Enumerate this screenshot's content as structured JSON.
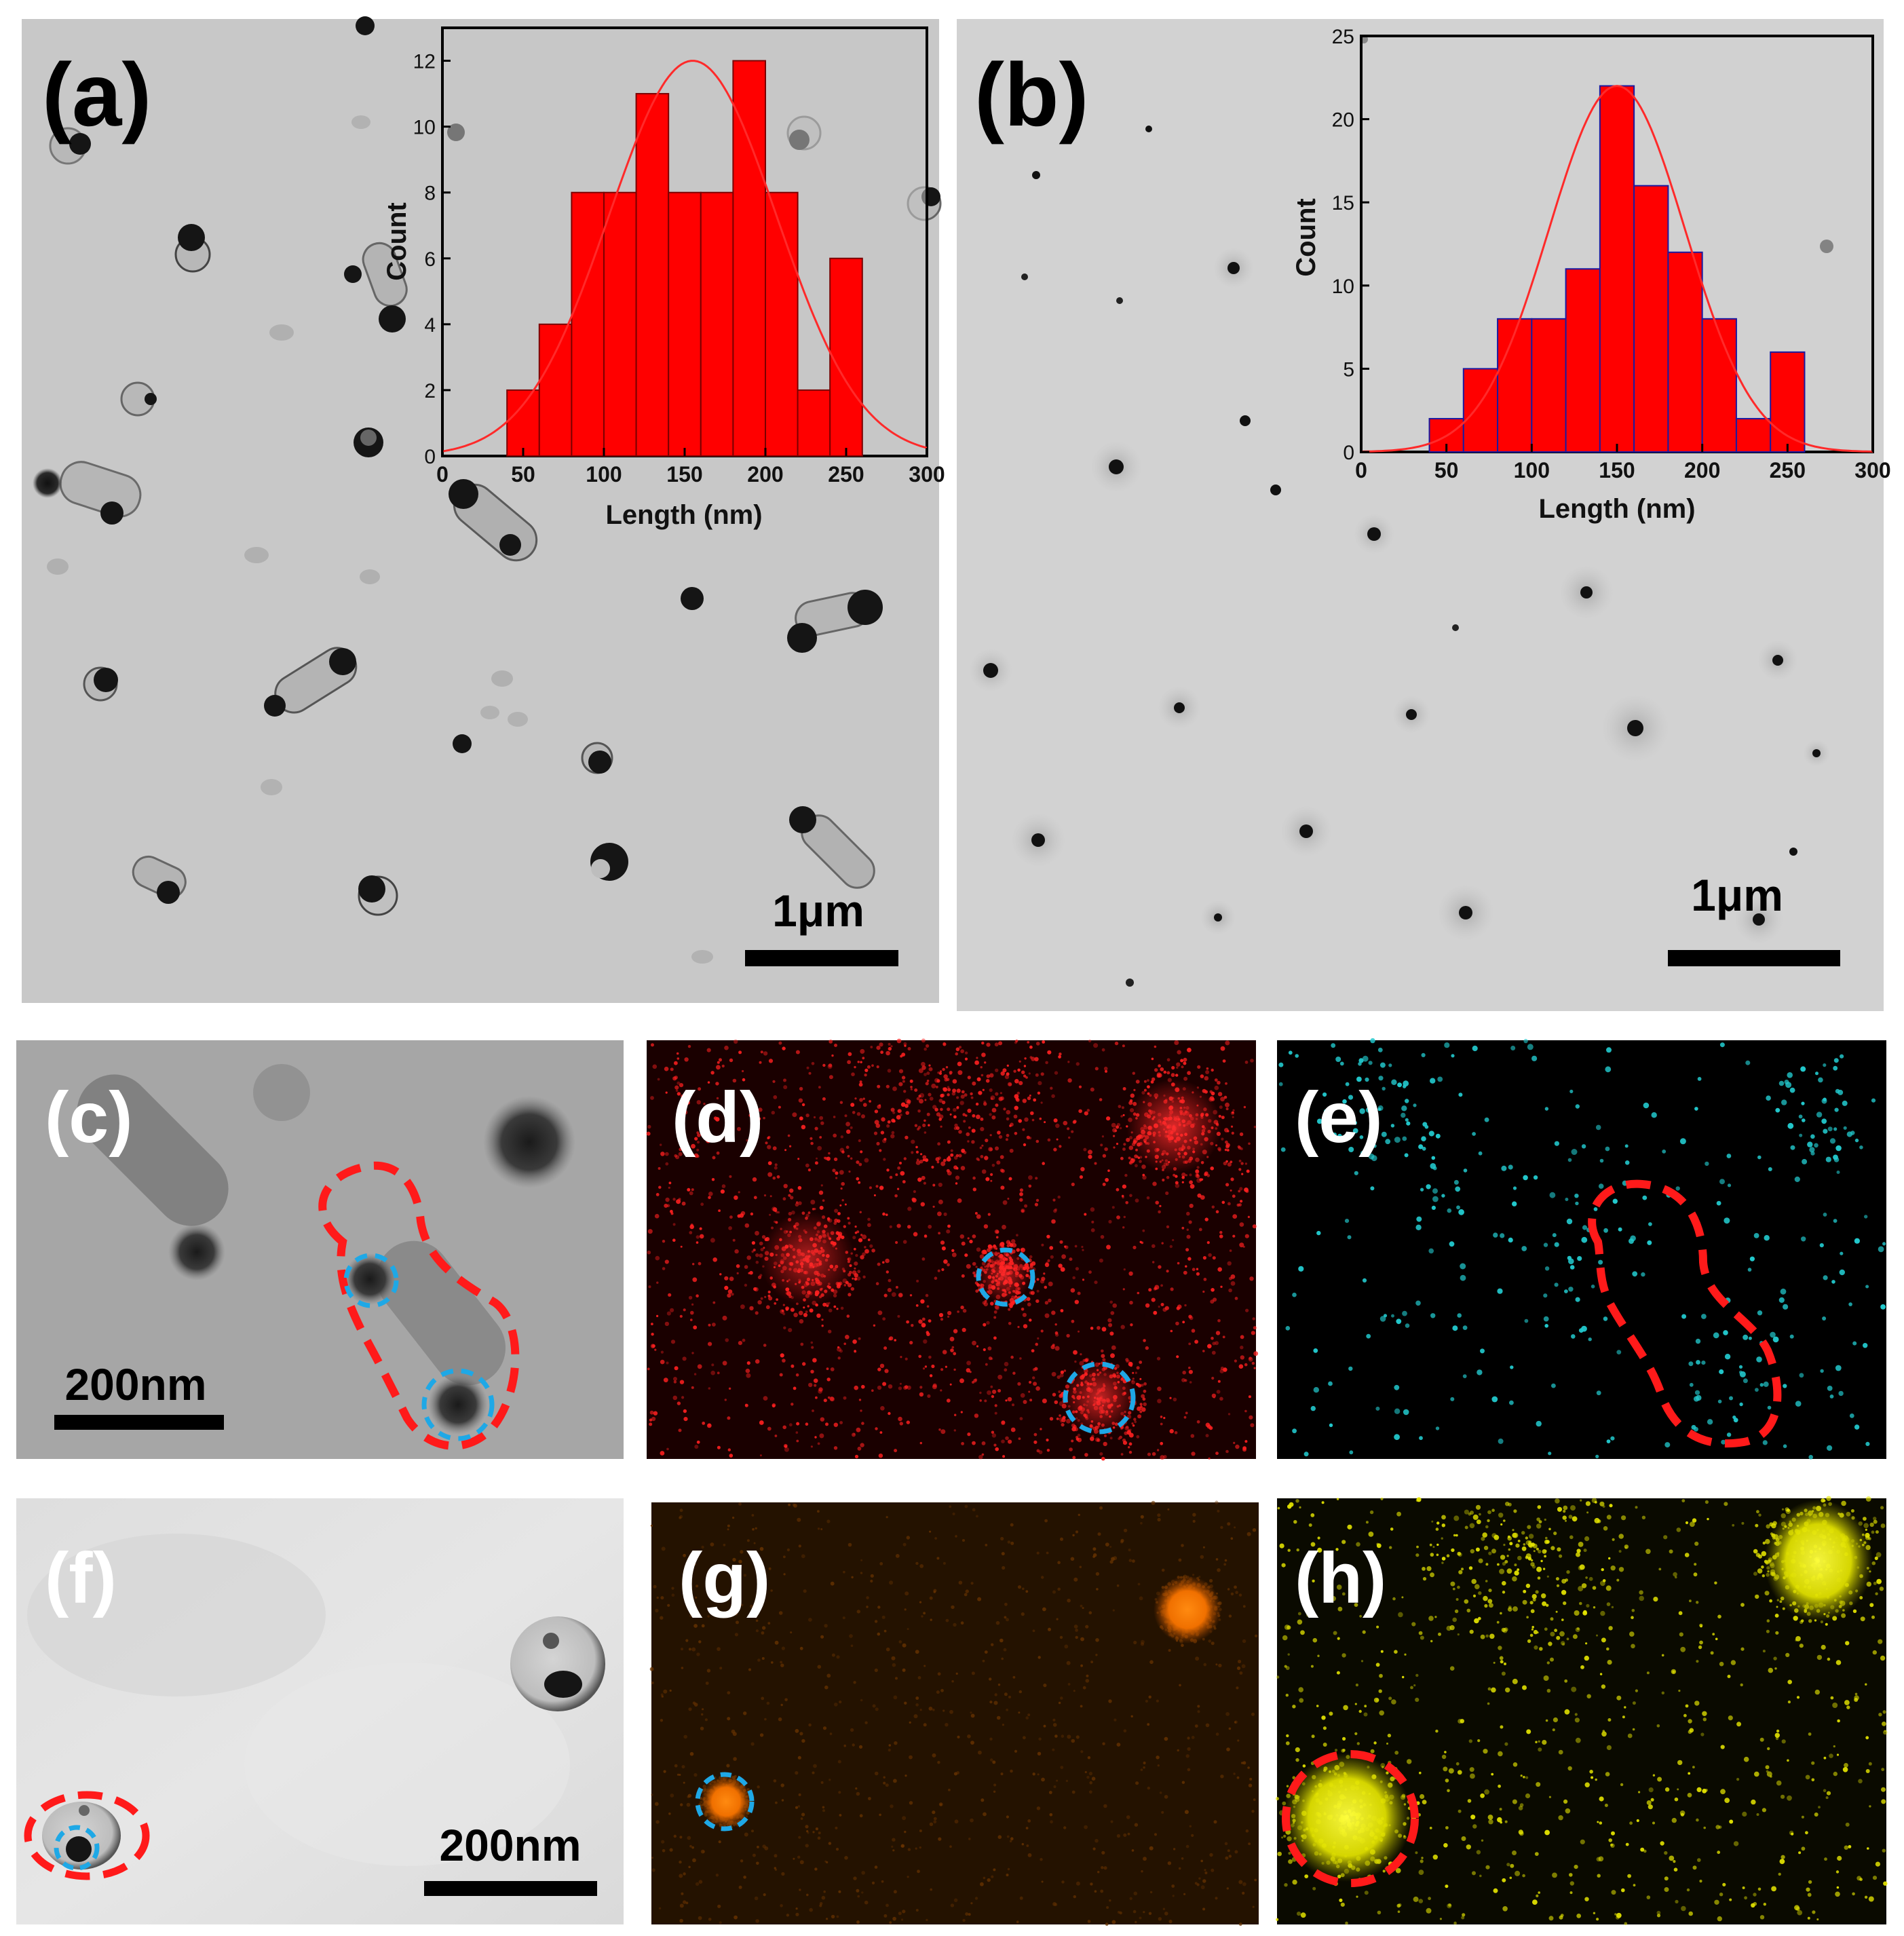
{
  "panels": {
    "a": {
      "label": "(a)",
      "scale_bar": "1μm"
    },
    "b": {
      "label": "(b)",
      "scale_bar": "1μm"
    },
    "c": {
      "label": "(c)",
      "scale_bar": "200nm"
    },
    "d": {
      "label": "(d)"
    },
    "e": {
      "label": "(e)"
    },
    "f": {
      "label": "(f)",
      "scale_bar": "200nm"
    },
    "g": {
      "label": "(g)"
    },
    "h": {
      "label": "(h)"
    }
  },
  "colors": {
    "bar_fill": "#ff0000",
    "bar_edge_a": "#7a0000",
    "bar_edge_b": "#1a1aa0",
    "fit_line": "#ff2a2a",
    "outline_red": "#ff1a1a",
    "outline_blue": "#1ea8e6",
    "map_red": "#ff2020",
    "map_cyan": "#22c8cc",
    "map_orange": "#ff7a00",
    "map_yellow": "#e6e600"
  },
  "chart_data": [
    {
      "type": "bar",
      "panel": "a",
      "xlabel": "Length (nm)",
      "ylabel": "Count",
      "bin_edges": [
        40,
        60,
        80,
        100,
        120,
        140,
        160,
        180,
        200,
        220,
        240,
        260
      ],
      "values": [
        2,
        4,
        8,
        8,
        11,
        8,
        8,
        12,
        8,
        2,
        6
      ],
      "fit": {
        "type": "gaussian",
        "mean": 155,
        "sigma": 52,
        "peak": 12
      },
      "xlim": [
        0,
        300
      ],
      "ylim": [
        0,
        13
      ],
      "xticks": [
        0,
        50,
        100,
        150,
        200,
        250,
        300
      ],
      "yticks": [
        0,
        2,
        4,
        6,
        8,
        10,
        12
      ],
      "grid": false
    },
    {
      "type": "bar",
      "panel": "b",
      "xlabel": "Length (nm)",
      "ylabel": "Count",
      "bin_edges": [
        40,
        60,
        80,
        100,
        120,
        140,
        160,
        180,
        200,
        220,
        240,
        260
      ],
      "values": [
        2,
        5,
        8,
        8,
        11,
        22,
        16,
        12,
        8,
        2,
        6
      ],
      "fit": {
        "type": "gaussian",
        "mean": 150,
        "sigma": 40,
        "peak": 22
      },
      "xlim": [
        0,
        300
      ],
      "ylim": [
        0,
        25
      ],
      "xticks": [
        0,
        50,
        100,
        150,
        200,
        250,
        300
      ],
      "yticks": [
        0,
        5,
        10,
        15,
        20,
        25
      ],
      "grid": false
    }
  ]
}
